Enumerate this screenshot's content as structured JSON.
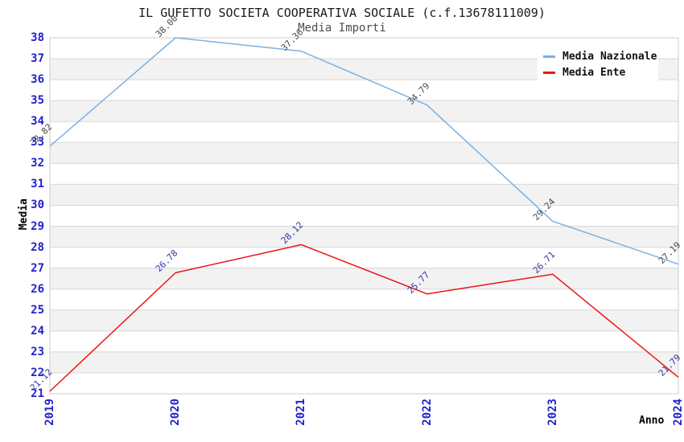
{
  "chart_data": {
    "type": "line",
    "title": "IL GUFETTO SOCIETA COOPERATIVA SOCIALE (c.f.13678111009)",
    "subtitle": "Media Importi",
    "xlabel": "Anno",
    "ylabel": "Media",
    "categories": [
      "2019",
      "2020",
      "2021",
      "2022",
      "2023",
      "2024"
    ],
    "series": [
      {
        "name": "Media Nazionale",
        "color": "#7cb0e2",
        "label_color": "#4a4a4a",
        "values": [
          32.82,
          38.0,
          37.36,
          34.79,
          29.24,
          27.19
        ],
        "labels": [
          "32.82",
          "38.00",
          "37.36",
          "34.79",
          "29.24",
          "27.19"
        ]
      },
      {
        "name": "Media Ente",
        "color": "#ed1515",
        "label_color": "#3434a6",
        "values": [
          21.12,
          26.78,
          28.12,
          25.77,
          26.71,
          21.79
        ],
        "labels": [
          "21.12",
          "26.78",
          "28.12",
          "25.77",
          "26.71",
          "21.79"
        ]
      }
    ],
    "ylim": [
      21,
      38
    ],
    "yticks": [
      21,
      22,
      23,
      24,
      25,
      26,
      27,
      28,
      29,
      30,
      31,
      32,
      33,
      34,
      35,
      36,
      37,
      38
    ],
    "grid": true,
    "legend_position": "top-right",
    "colors": {
      "tick_label": "#2222cc",
      "grid_line": "#d8d8d8",
      "band_alt": "#f2f2f2",
      "plot_border": "#cccccc",
      "background": "#ffffff"
    }
  }
}
